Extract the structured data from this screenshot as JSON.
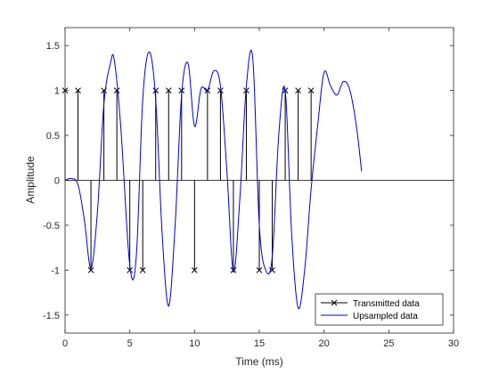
{
  "chart_data": {
    "type": "line",
    "xlabel": "Time (ms)",
    "ylabel": "Amplitude",
    "xlim": [
      0,
      30
    ],
    "ylim": [
      -1.7,
      1.7
    ],
    "xticks": [
      0,
      5,
      10,
      15,
      20,
      25,
      30
    ],
    "yticks": [
      -1.5,
      -1,
      -0.5,
      0,
      0.5,
      1,
      1.5
    ],
    "xtick_labels": [
      "0",
      "5",
      "10",
      "15",
      "20",
      "25",
      "30"
    ],
    "ytick_labels": [
      "-1.5",
      "-1",
      "-0.5",
      "0",
      "0.5",
      "1",
      "1.5"
    ],
    "grid": false,
    "legend_position": "bottom-right",
    "series": [
      {
        "name": "Transmitted data",
        "kind": "stem",
        "color": "#000000",
        "marker": "x",
        "x": [
          0,
          1,
          2,
          3,
          4,
          5,
          6,
          7,
          8,
          9,
          10,
          11,
          12,
          13,
          14,
          15,
          16,
          17,
          18,
          19
        ],
        "values": [
          1,
          1,
          -1,
          1,
          1,
          -1,
          -1,
          1,
          1,
          1,
          -1,
          1,
          1,
          -1,
          1,
          -1,
          -1,
          1,
          1,
          1
        ]
      },
      {
        "name": "Upsampled data",
        "kind": "line",
        "color": "#0000cc",
        "x": [
          0,
          0.5,
          1,
          1.5,
          2,
          2.5,
          3,
          3.5,
          3.8,
          4.3,
          5,
          5.5,
          6,
          6.5,
          7,
          7.5,
          8,
          8.5,
          9,
          9.5,
          10,
          10.5,
          11,
          11.5,
          12,
          12.5,
          13,
          13.5,
          14,
          14.5,
          15,
          15.5,
          16,
          16.5,
          17,
          17.5,
          18,
          18.5,
          19,
          19.5,
          20,
          20.5,
          21,
          21.5,
          22,
          22.5,
          22.9
        ],
        "values": [
          0,
          0.02,
          -0.05,
          -0.45,
          -0.98,
          -0.35,
          0.85,
          1.3,
          1.34,
          0.6,
          -0.95,
          -0.85,
          0.9,
          1.43,
          0.9,
          -0.6,
          -1.4,
          -0.5,
          0.95,
          1.3,
          0.6,
          1.02,
          1.0,
          1.22,
          1.05,
          0.1,
          -1.02,
          -0.2,
          1.05,
          1.35,
          -0.5,
          -1.0,
          -0.85,
          0.5,
          1.0,
          -0.6,
          -1.42,
          -1.0,
          -0.1,
          0.6,
          1.2,
          1.05,
          0.95,
          1.1,
          1.0,
          0.6,
          0.1
        ]
      }
    ]
  }
}
